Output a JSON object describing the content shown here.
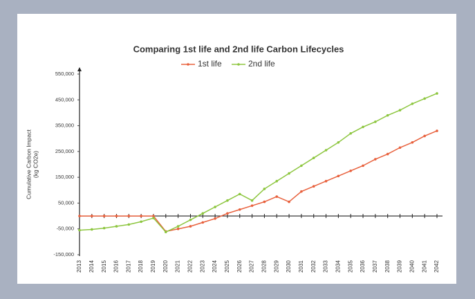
{
  "chart_data": {
    "type": "line",
    "title": "Comparing 1st life and 2nd life Carbon Lifecycles",
    "ylabel": [
      "Cumulative Carbon Impact",
      "(kg CO2e)"
    ],
    "categories": [
      "2013",
      "2014",
      "2015",
      "2016",
      "2017",
      "2018",
      "2019",
      "2020",
      "2021",
      "2022",
      "2023",
      "2024",
      "2025",
      "2026",
      "2027",
      "2028",
      "2029",
      "2030",
      "2031",
      "2032",
      "2033",
      "2034",
      "2035",
      "2036",
      "2037",
      "2038",
      "2039",
      "2040",
      "2041",
      "2042"
    ],
    "series": [
      {
        "name": "1st life",
        "color": "#e8603c",
        "values": [
          0,
          0,
          0,
          0,
          0,
          0,
          0,
          -60000,
          -50000,
          -40000,
          -25000,
          -10000,
          10000,
          25000,
          40000,
          55000,
          75000,
          55000,
          95000,
          115000,
          135000,
          155000,
          175000,
          195000,
          220000,
          240000,
          265000,
          285000,
          310000,
          330000
        ]
      },
      {
        "name": "2nd life",
        "color": "#8dc63f",
        "values": [
          -55000,
          -52000,
          -47000,
          -40000,
          -33000,
          -22000,
          -8000,
          -62000,
          -40000,
          -15000,
          10000,
          35000,
          60000,
          85000,
          60000,
          105000,
          135000,
          165000,
          195000,
          225000,
          255000,
          285000,
          320000,
          345000,
          365000,
          390000,
          410000,
          435000,
          455000,
          475000
        ]
      }
    ],
    "ylim": [
      -150000,
      550000
    ],
    "yticks": [
      {
        "value": -150000,
        "label": "-150,000"
      },
      {
        "value": -50000,
        "label": "-50,000"
      },
      {
        "value": 50000,
        "label": "50,000"
      },
      {
        "value": 150000,
        "label": "150,000"
      },
      {
        "value": 250000,
        "label": "250,000"
      },
      {
        "value": 350000,
        "label": "350,000"
      },
      {
        "value": 450000,
        "label": "450,000"
      },
      {
        "value": 550000,
        "label": "550,000"
      }
    ],
    "grid": false,
    "legend": "top"
  }
}
